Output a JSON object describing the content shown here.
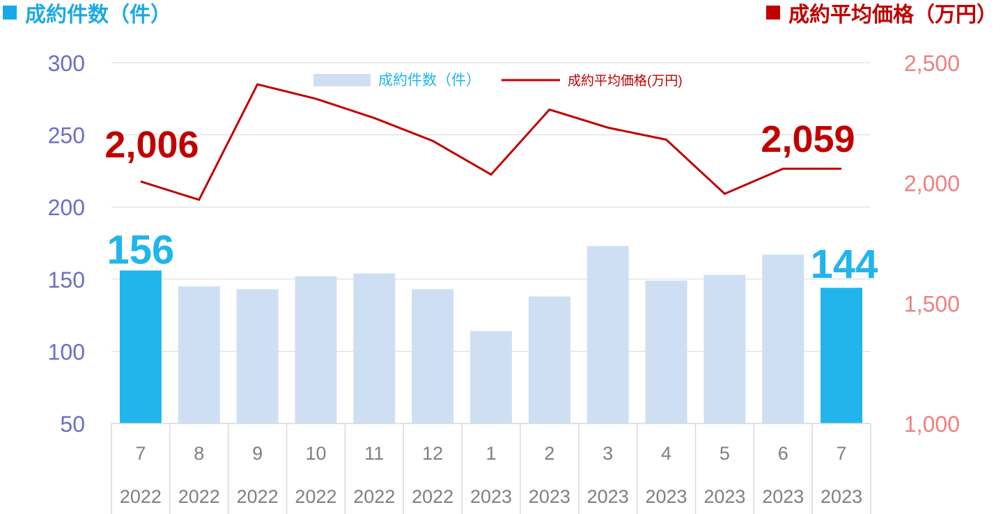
{
  "header": {
    "left_title": "成約件数（件）",
    "right_title": "成約平均価格（万円）"
  },
  "legend": {
    "bar_label": "成約件数（件）",
    "line_label": "成約平均価格(万円)"
  },
  "colors": {
    "bar": "#cfdff3",
    "bar_highlight": "#21b5ec",
    "line": "#c00000",
    "left_axis": "#6c6cc8",
    "right_axis": "#ee8080",
    "grid": "#d9d9d9",
    "category_text": "#7f7f7f"
  },
  "chart_data": {
    "type": "bar",
    "categories": [
      "7",
      "8",
      "9",
      "10",
      "11",
      "12",
      "1",
      "2",
      "3",
      "4",
      "5",
      "6",
      "7"
    ],
    "years": [
      "2022",
      "2022",
      "2022",
      "2022",
      "2022",
      "2022",
      "2023",
      "2023",
      "2023",
      "2023",
      "2023",
      "2023",
      "2023"
    ],
    "series": [
      {
        "name": "成約件数（件）",
        "type": "bar",
        "axis": "left",
        "values": [
          156,
          145,
          143,
          152,
          154,
          143,
          114,
          138,
          173,
          149,
          153,
          167,
          144
        ],
        "highlight": [
          0,
          12
        ]
      },
      {
        "name": "成約平均価格(万円)",
        "type": "line",
        "axis": "right",
        "values": [
          2006,
          1930,
          2410,
          2350,
          2270,
          2175,
          2035,
          2305,
          2230,
          2180,
          1955,
          2059,
          2059
        ]
      }
    ],
    "y_left": {
      "min": 50,
      "max": 300,
      "ticks": [
        "50",
        "100",
        "150",
        "200",
        "250",
        "300"
      ]
    },
    "y_right": {
      "min": 1000,
      "max": 2500,
      "ticks": [
        "1,000",
        "1,500",
        "2,000",
        "2,500"
      ]
    },
    "annotations": {
      "first_bar": "156",
      "last_bar": "144",
      "first_price": "2,006",
      "last_price": "2,059"
    },
    "grid": true,
    "legend_position": "top-center"
  }
}
